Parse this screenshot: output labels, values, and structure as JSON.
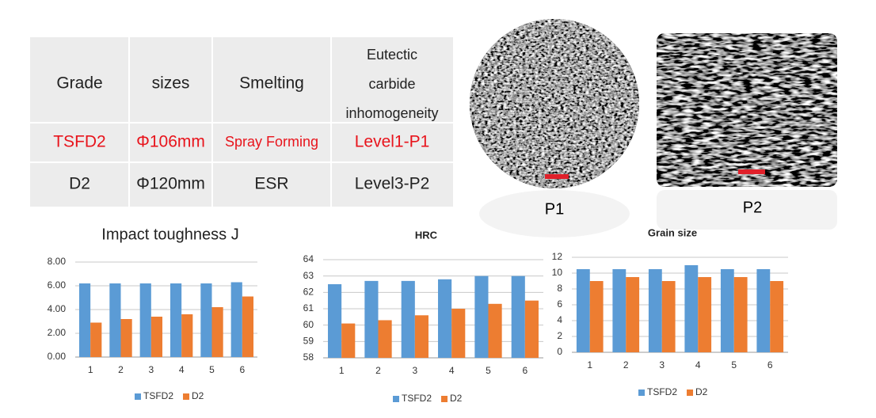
{
  "table": {
    "header": [
      "Grade",
      "sizes",
      "Smelting",
      "Eutectic carbide inhomogeneity"
    ],
    "rows": [
      [
        "TSFD2",
        "Φ106mm",
        "Spray Forming",
        "Level1-P1"
      ],
      [
        "D2",
        "Φ120mm",
        "ESR",
        "Level3-P2"
      ]
    ]
  },
  "images": [
    {
      "label": "P1"
    },
    {
      "label": "P2"
    }
  ],
  "chart_data": [
    {
      "type": "bar",
      "title": "Impact toughness J",
      "categories": [
        "1",
        "2",
        "3",
        "4",
        "5",
        "6"
      ],
      "series": [
        {
          "name": "TSFD2",
          "color": "#5b9bd5",
          "values": [
            6.2,
            6.2,
            6.2,
            6.2,
            6.2,
            6.3
          ]
        },
        {
          "name": "D2",
          "color": "#ed7d31",
          "values": [
            2.9,
            3.2,
            3.4,
            3.6,
            4.2,
            5.1
          ]
        }
      ],
      "ylim": [
        0,
        8
      ],
      "yticks": [
        {
          "value": 0,
          "label": "0.00"
        },
        {
          "value": 2,
          "label": "2.00"
        },
        {
          "value": 4,
          "label": "4.00"
        },
        {
          "value": 6,
          "label": "6.00"
        },
        {
          "value": 8,
          "label": "8.00"
        }
      ],
      "grid": true
    },
    {
      "type": "bar",
      "title": "HRC",
      "categories": [
        "1",
        "2",
        "3",
        "4",
        "5",
        "6"
      ],
      "series": [
        {
          "name": "TSFD2",
          "color": "#5b9bd5",
          "values": [
            62.5,
            62.7,
            62.7,
            62.8,
            63.0,
            63.0
          ]
        },
        {
          "name": "D2",
          "color": "#ed7d31",
          "values": [
            60.1,
            60.3,
            60.6,
            61.0,
            61.3,
            61.5
          ]
        }
      ],
      "ylim": [
        58,
        64
      ],
      "yticks": [
        58,
        59,
        60,
        61,
        62,
        63,
        64
      ],
      "grid": true
    },
    {
      "type": "bar",
      "title": "Grain size",
      "categories": [
        "1",
        "2",
        "3",
        "4",
        "5",
        "6"
      ],
      "series": [
        {
          "name": "TSFD2",
          "color": "#5b9bd5",
          "values": [
            10.5,
            10.5,
            10.5,
            11,
            10.5,
            10.5
          ]
        },
        {
          "name": "D2",
          "color": "#ed7d31",
          "values": [
            9,
            9.5,
            9,
            9.5,
            9.5,
            9
          ]
        }
      ],
      "ylim": [
        0,
        12
      ],
      "yticks": [
        0,
        2,
        4,
        6,
        8,
        10,
        12
      ],
      "grid": true
    }
  ]
}
